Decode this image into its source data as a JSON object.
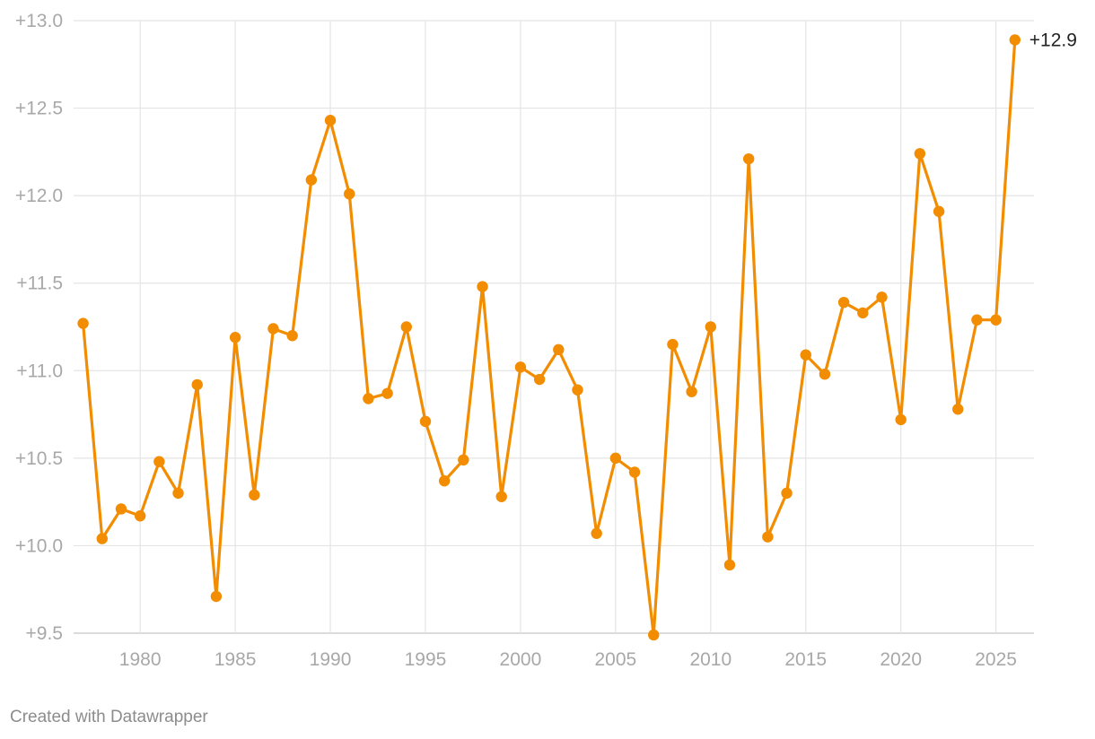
{
  "chart_data": {
    "type": "line",
    "title": "",
    "xlabel": "",
    "ylabel": "",
    "xlim": [
      1976.5,
      2027
    ],
    "ylim": [
      9.5,
      13.0
    ],
    "grid": true,
    "y_ticks": [
      9.5,
      10.0,
      10.5,
      11.0,
      11.5,
      12.0,
      12.5,
      13.0
    ],
    "y_tick_labels": [
      "+9.5",
      "+10.0",
      "+10.5",
      "+11.0",
      "+11.5",
      "+12.0",
      "+12.5",
      "+13.0"
    ],
    "x_ticks": [
      1980,
      1985,
      1990,
      1995,
      2000,
      2005,
      2010,
      2015,
      2020,
      2025
    ],
    "x_tick_labels": [
      "1980",
      "1985",
      "1990",
      "1995",
      "2000",
      "2005",
      "2010",
      "2015",
      "2020",
      "2025"
    ],
    "series": [
      {
        "name": "value",
        "color": "#f28c00",
        "x": [
          1977,
          1978,
          1979,
          1980,
          1981,
          1982,
          1983,
          1984,
          1985,
          1986,
          1987,
          1988,
          1989,
          1990,
          1991,
          1992,
          1993,
          1994,
          1995,
          1996,
          1997,
          1998,
          1999,
          2000,
          2001,
          2002,
          2003,
          2004,
          2005,
          2006,
          2007,
          2008,
          2009,
          2010,
          2011,
          2012,
          2013,
          2014,
          2015,
          2016,
          2017,
          2018,
          2019,
          2020,
          2021,
          2022,
          2023,
          2024,
          2025,
          2026
        ],
        "values": [
          11.27,
          10.04,
          10.21,
          10.17,
          10.48,
          10.3,
          10.92,
          9.71,
          11.19,
          10.29,
          11.24,
          11.2,
          12.09,
          12.43,
          12.01,
          10.84,
          10.87,
          11.25,
          10.71,
          10.37,
          10.49,
          11.48,
          10.28,
          11.02,
          10.95,
          11.12,
          10.89,
          10.07,
          10.5,
          10.42,
          9.49,
          11.15,
          10.88,
          11.25,
          9.89,
          12.21,
          10.05,
          10.3,
          11.09,
          10.98,
          11.39,
          11.33,
          11.42,
          10.72,
          12.24,
          11.91,
          10.78,
          11.29,
          11.29,
          12.89
        ]
      }
    ],
    "last_value_label": "+12.9"
  },
  "footer": {
    "credit": "Created with Datawrapper"
  }
}
